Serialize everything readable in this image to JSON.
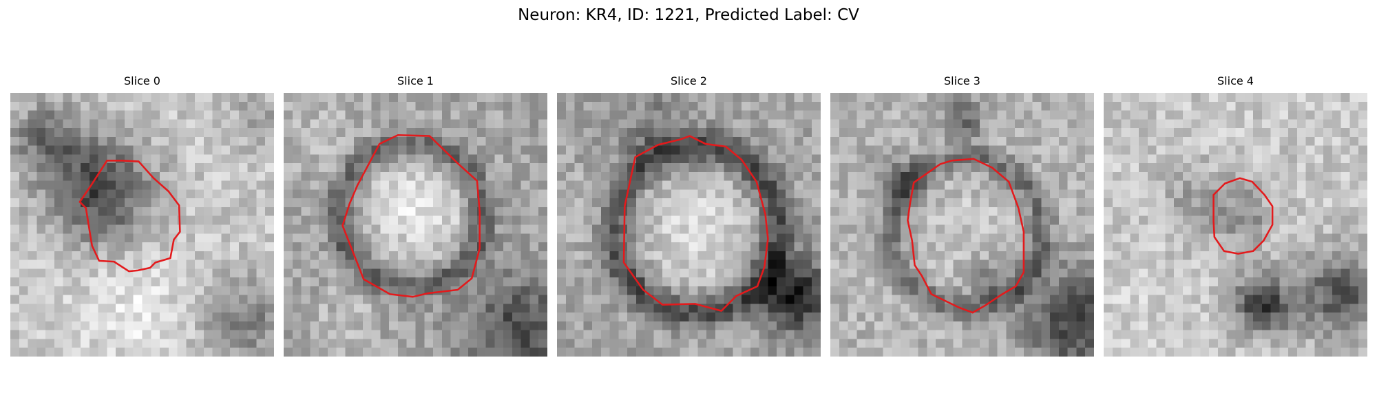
{
  "figure": {
    "title": "Neuron: KR4, ID: 1221, Predicted Label: CV",
    "outline_color": "#e31a1c"
  },
  "panels": [
    {
      "title": "Slice 0",
      "texture": "dark-blob-upper-left",
      "seed": 11
    },
    {
      "title": "Slice 1",
      "texture": "bright-round-soma",
      "seed": 23
    },
    {
      "title": "Slice 2",
      "texture": "bright-soma-dark-rim",
      "seed": 37
    },
    {
      "title": "Slice 3",
      "texture": "medium-soma-dark-branches",
      "seed": 53
    },
    {
      "title": "Slice 4",
      "texture": "small-grey-spot",
      "seed": 71
    }
  ]
}
